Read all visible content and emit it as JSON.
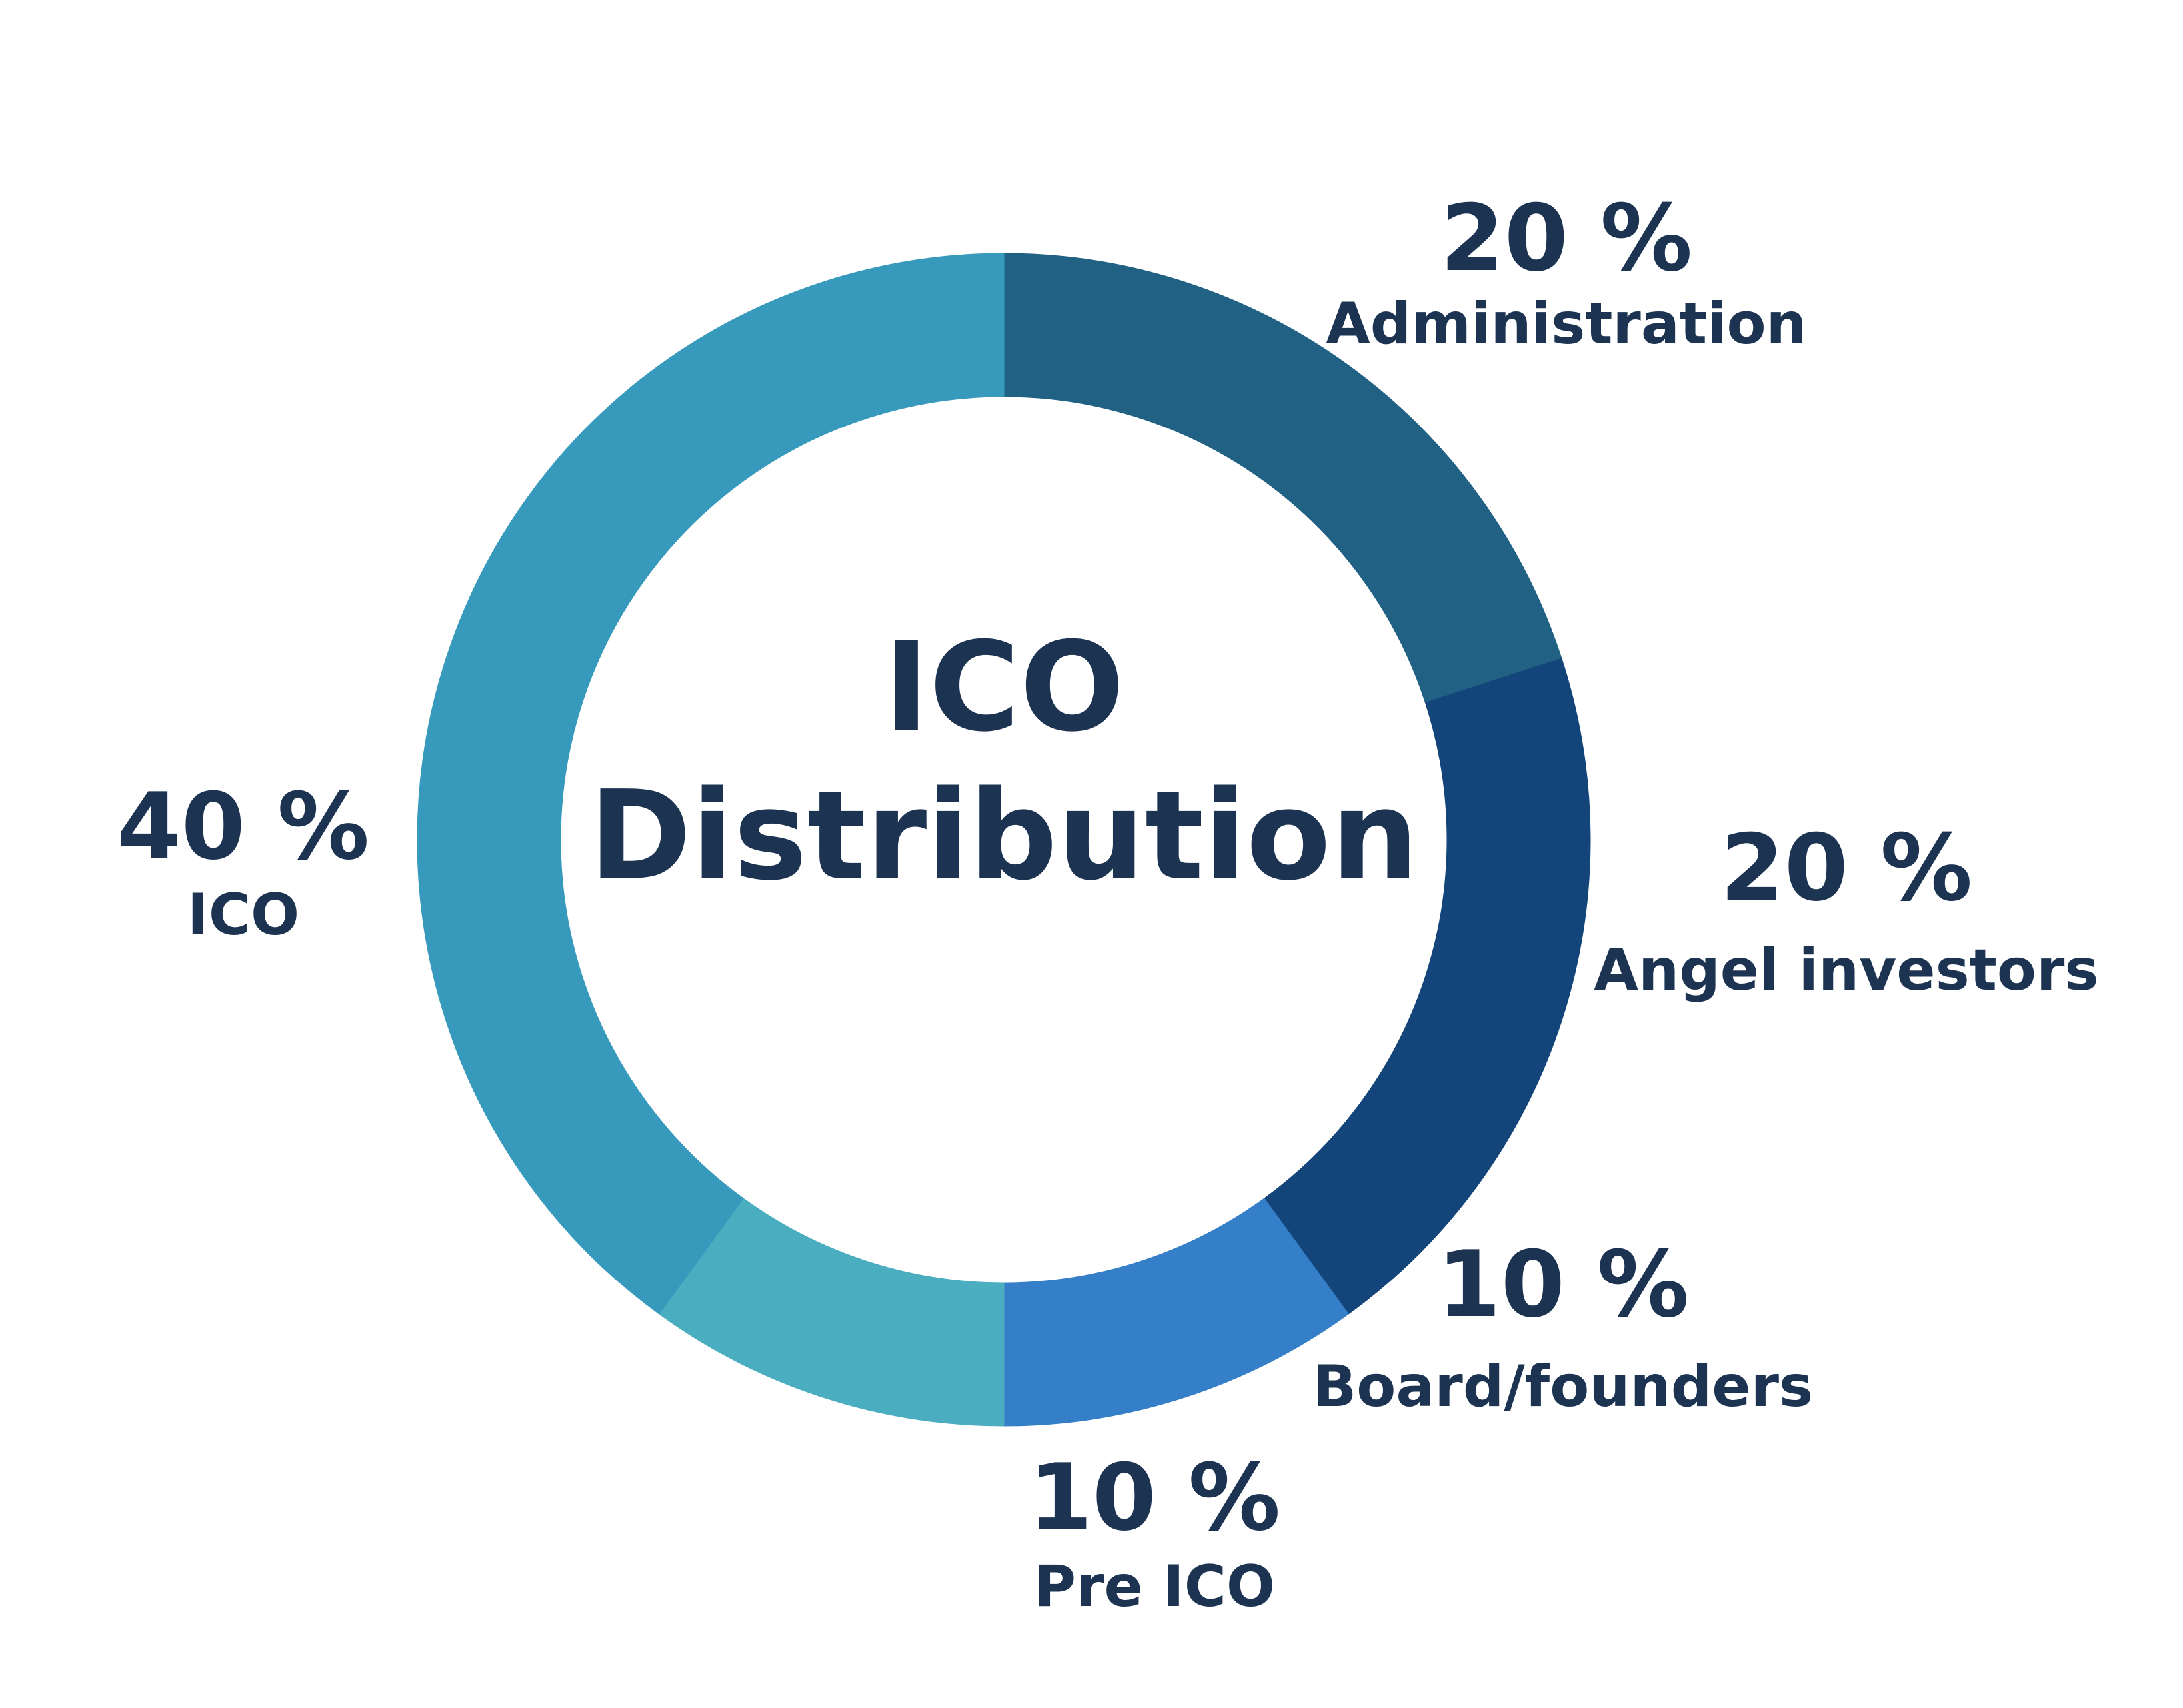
{
  "chart_data": {
    "type": "pie",
    "variant": "donut",
    "center_title_lines": [
      "ICO",
      "Distribution"
    ],
    "legend": "none",
    "slices": [
      {
        "label": "Administration",
        "value": 20,
        "value_label": "20 %",
        "color": "#216184"
      },
      {
        "label": "Angel investors",
        "value": 20,
        "value_label": "20 %",
        "color": "#13457A"
      },
      {
        "label": "Board/founders",
        "value": 10,
        "value_label": "10 %",
        "color": "#347FC8"
      },
      {
        "label": "Pre ICO",
        "value": 10,
        "value_label": "10 %",
        "color": "#4AADC0"
      },
      {
        "label": "ICO",
        "value": 40,
        "value_label": "40 %",
        "color": "#379ABC"
      }
    ],
    "text_color": "#1C3352"
  }
}
